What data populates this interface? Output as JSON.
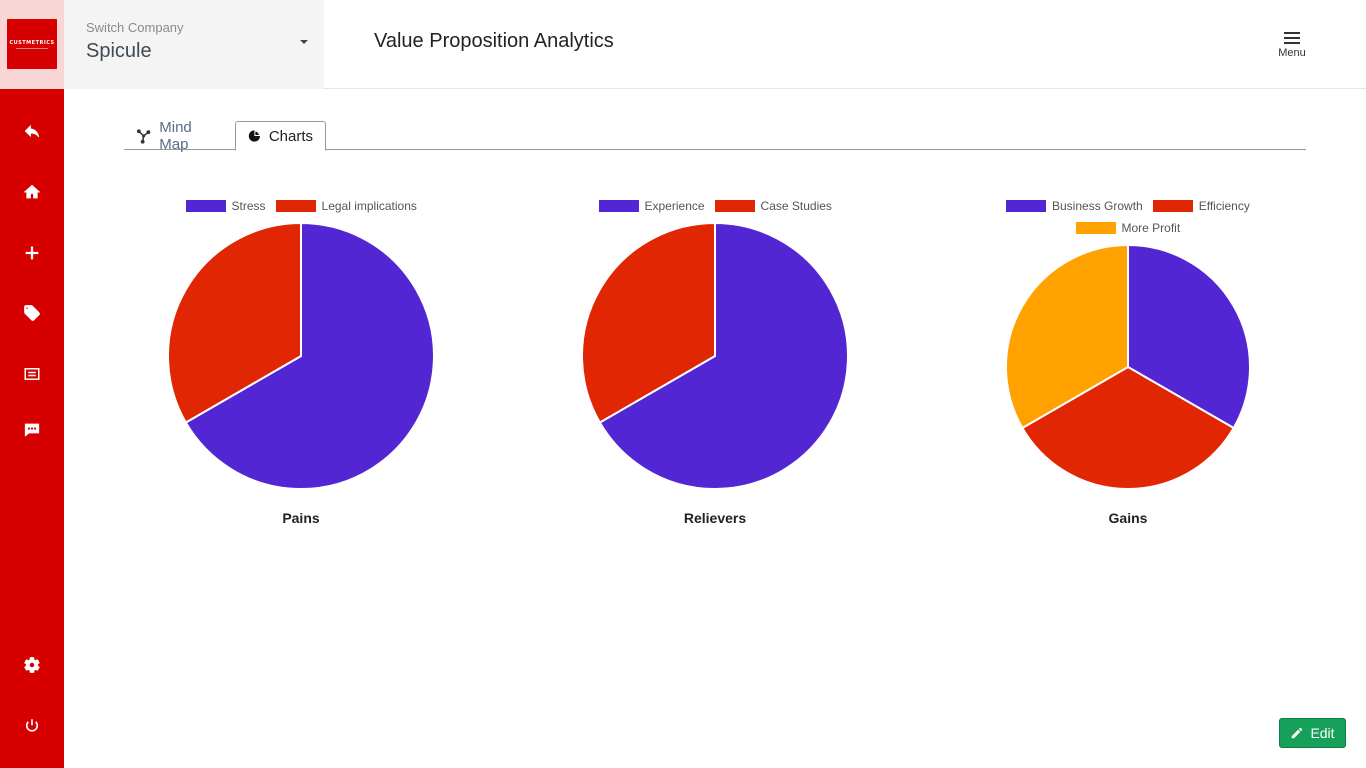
{
  "company": {
    "label": "Switch Company",
    "name": "Spicule"
  },
  "logo": {
    "text": "CUSTMETRICS"
  },
  "header": {
    "title": "Value Proposition Analytics",
    "menu_label": "Menu"
  },
  "sidebar": {
    "items": [
      {
        "icon": "back-arrow-icon"
      },
      {
        "icon": "home-icon"
      },
      {
        "icon": "plus-icon"
      },
      {
        "icon": "tag-icon"
      },
      {
        "icon": "document-icon"
      },
      {
        "icon": "chat-icon"
      },
      {
        "icon": "gear-icon"
      },
      {
        "icon": "power-icon"
      }
    ]
  },
  "tabs": [
    {
      "label": "Mind Map",
      "icon": "mind-map-icon",
      "active": false
    },
    {
      "label": "Charts",
      "icon": "pie-chart-icon",
      "active": true
    }
  ],
  "colors": {
    "purple": "#5227d3",
    "red": "#e02602",
    "orange": "#ffa200",
    "sidebar": "#d60000",
    "edit": "#17a05a"
  },
  "chart_data": [
    {
      "type": "pie",
      "title": "Pains",
      "labels": [
        "Stress",
        "Legal implications"
      ],
      "values": [
        2,
        1
      ],
      "colors": [
        "#5227d3",
        "#e02602"
      ],
      "legend": "top"
    },
    {
      "type": "pie",
      "title": "Relievers",
      "labels": [
        "Experience",
        "Case Studies"
      ],
      "values": [
        2,
        1
      ],
      "colors": [
        "#5227d3",
        "#e02602"
      ],
      "legend": "top"
    },
    {
      "type": "pie",
      "title": "Gains",
      "labels": [
        "Business Growth",
        "Efficiency",
        "More Profit"
      ],
      "values": [
        1,
        1,
        1
      ],
      "colors": [
        "#5227d3",
        "#e02602",
        "#ffa200"
      ],
      "legend": "top"
    }
  ],
  "edit_label": "Edit"
}
